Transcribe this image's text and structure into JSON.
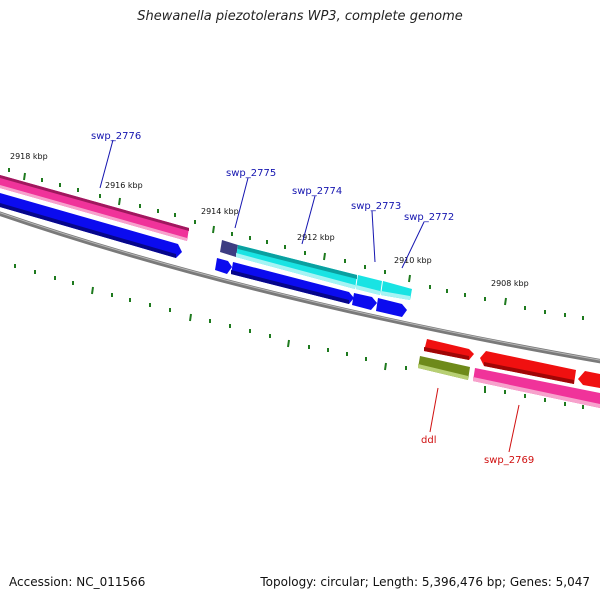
{
  "title": "Shewanella piezotolerans WP3, complete genome",
  "footer": {
    "accession": "Accession: NC_011566",
    "summary": "Topology: circular; Length: 5,396,476 bp; Genes: 5,047"
  },
  "scale_labels": [
    "2918 kbp",
    "2916 kbp",
    "2914 kbp",
    "2912 kbp",
    "2910 kbp",
    "2908 kbp"
  ],
  "gene_labels": {
    "swp_2776": "swp_2776",
    "swp_2775": "swp_2775",
    "swp_2774": "swp_2774",
    "swp_2773": "swp_2773",
    "swp_2772": "swp_2772",
    "ddl": "ddl",
    "swp_2769": "swp_2769"
  },
  "colors": {
    "backbone": "#808080",
    "tick": "#1e7a1e",
    "pink": "#f0339a",
    "blue": "#0b0bef",
    "cyan": "#19e3e3",
    "red": "#f01010",
    "olive": "#6e8a1a",
    "navy": "#3d3d82"
  }
}
